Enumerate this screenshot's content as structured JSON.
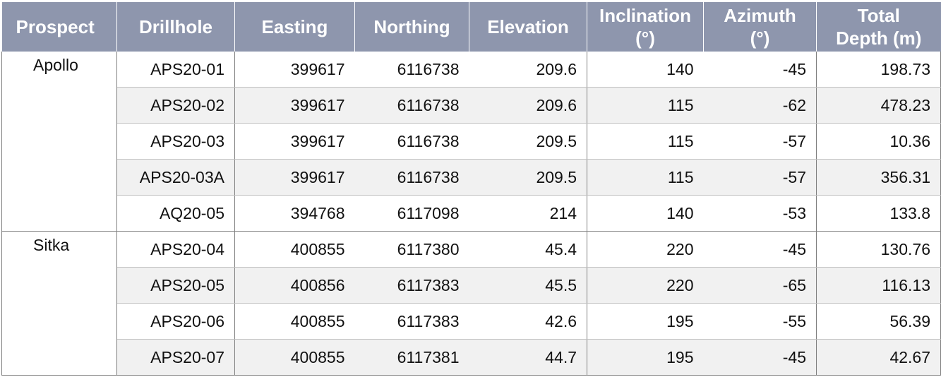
{
  "table": {
    "headers": [
      {
        "key": "prospect",
        "lines": [
          "Prospect"
        ]
      },
      {
        "key": "drillhole",
        "lines": [
          "Drillhole"
        ]
      },
      {
        "key": "easting",
        "lines": [
          "Easting"
        ]
      },
      {
        "key": "northing",
        "lines": [
          "Northing"
        ]
      },
      {
        "key": "elevation",
        "lines": [
          "Elevation"
        ]
      },
      {
        "key": "inclination",
        "lines": [
          "Inclination",
          "(°)"
        ]
      },
      {
        "key": "azimuth",
        "lines": [
          "Azimuth",
          "(°)"
        ]
      },
      {
        "key": "total_depth",
        "lines": [
          "Total",
          "Depth (m)"
        ]
      }
    ],
    "groups": [
      {
        "prospect": "Apollo",
        "rows": [
          {
            "drillhole": "APS20-01",
            "easting": "399617",
            "northing": "6116738",
            "elevation": "209.6",
            "inclination": "140",
            "azimuth": "-45",
            "total_depth": "198.73"
          },
          {
            "drillhole": "APS20-02",
            "easting": "399617",
            "northing": "6116738",
            "elevation": "209.6",
            "inclination": "115",
            "azimuth": "-62",
            "total_depth": "478.23"
          },
          {
            "drillhole": "APS20-03",
            "easting": "399617",
            "northing": "6116738",
            "elevation": "209.5",
            "inclination": "115",
            "azimuth": "-57",
            "total_depth": "10.36"
          },
          {
            "drillhole": "APS20-03A",
            "easting": "399617",
            "northing": "6116738",
            "elevation": "209.5",
            "inclination": "115",
            "azimuth": "-57",
            "total_depth": "356.31"
          },
          {
            "drillhole": "AQ20-05",
            "easting": "394768",
            "northing": "6117098",
            "elevation": "214",
            "inclination": "140",
            "azimuth": "-53",
            "total_depth": "133.8"
          }
        ]
      },
      {
        "prospect": "Sitka",
        "rows": [
          {
            "drillhole": "APS20-04",
            "easting": "400855",
            "northing": "6117380",
            "elevation": "45.4",
            "inclination": "220",
            "azimuth": "-45",
            "total_depth": "130.76"
          },
          {
            "drillhole": "APS20-05",
            "easting": "400856",
            "northing": "6117383",
            "elevation": "45.5",
            "inclination": "220",
            "azimuth": "-65",
            "total_depth": "116.13"
          },
          {
            "drillhole": "APS20-06",
            "easting": "400855",
            "northing": "6117383",
            "elevation": "42.6",
            "inclination": "195",
            "azimuth": "-55",
            "total_depth": "56.39"
          },
          {
            "drillhole": "APS20-07",
            "easting": "400855",
            "northing": "6117381",
            "elevation": "44.7",
            "inclination": "195",
            "azimuth": "-45",
            "total_depth": "42.67"
          }
        ]
      }
    ]
  }
}
